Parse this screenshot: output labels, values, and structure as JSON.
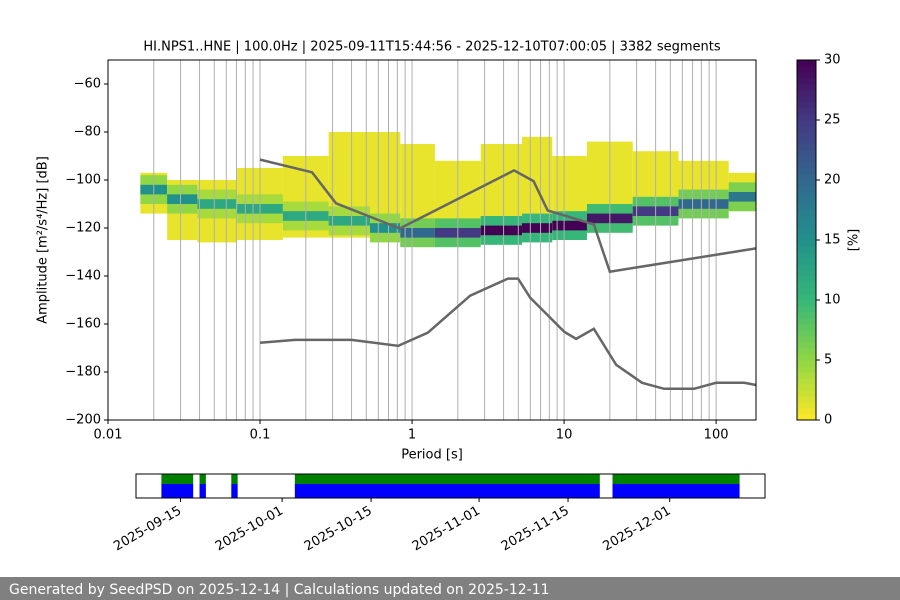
{
  "chart_data": [
    {
      "type": "heatmap",
      "title": "HI.NPS1..HNE | 100.0Hz | 2025-09-11T15:44:56 - 2025-12-10T07:00:05 | 3382 segments",
      "xlabel": "Period [s]",
      "ylabel": "Amplitude [m²/s⁴/Hz] [dB]",
      "xscale": "log",
      "xlim": [
        0.01,
        183
      ],
      "xticks": [
        0.01,
        0.1,
        1,
        10,
        100
      ],
      "xgrid_minor": true,
      "ylim": [
        -200,
        -50
      ],
      "yticks": [
        {
          "value": -60,
          "label": "−60"
        },
        {
          "value": -80,
          "label": "−80"
        },
        {
          "value": -100,
          "label": "−100"
        },
        {
          "value": -120,
          "label": "−120"
        },
        {
          "value": -140,
          "label": "−140"
        },
        {
          "value": -160,
          "label": "−160"
        },
        {
          "value": -180,
          "label": "−180"
        },
        {
          "value": -200,
          "label": "−200"
        }
      ],
      "heatmap": {
        "periods": [
          0.02,
          0.03,
          0.05,
          0.1,
          0.2,
          0.4,
          0.7,
          1,
          2,
          4,
          7,
          10,
          20,
          40,
          80,
          183
        ],
        "low": [
          -114,
          -125,
          -126,
          -125,
          -124,
          -124,
          -124,
          -124,
          -124,
          -124,
          -123,
          -122,
          -120,
          -117,
          -114,
          -113
        ],
        "high": [
          -97,
          -100,
          -100,
          -95,
          -90,
          -80,
          -80,
          -85,
          -92,
          -85,
          -82,
          -90,
          -84,
          -88,
          -92,
          -97
        ],
        "mode": [
          -104,
          -108,
          -110,
          -112,
          -115,
          -117,
          -120,
          -122,
          -122,
          -121,
          -120,
          -119,
          -116,
          -113,
          -110,
          -107
        ],
        "peak_percent": [
          15,
          15,
          12,
          12,
          12,
          12,
          15,
          20,
          25,
          30,
          30,
          30,
          28,
          25,
          20,
          18
        ]
      },
      "series": [
        {
          "color": "#666666",
          "x": [
            0.1,
            0.22,
            0.316,
            0.83,
            4.69,
            6.3,
            7.8,
            15.7,
            20,
            183
          ],
          "values": [
            -91.5,
            -96.8,
            -109.7,
            -120.2,
            -96,
            -100.5,
            -112.7,
            -118.5,
            -138.2,
            -128.5
          ]
        },
        {
          "color": "#666666",
          "x": [
            0.1,
            0.17,
            0.4,
            0.81,
            1.27,
            2.41,
            4.27,
            4.98,
            5.98,
            10,
            12,
            15.7,
            22,
            32.6,
            45.5,
            71.6,
            100,
            153,
            183
          ],
          "values": [
            -167.8,
            -166.6,
            -166.6,
            -169.1,
            -163.6,
            -148.2,
            -141.1,
            -141.1,
            -149,
            -163.2,
            -166.2,
            -162,
            -177,
            -184.5,
            -187,
            -187,
            -184.5,
            -184.5,
            -185.4
          ]
        }
      ],
      "colorbar": {
        "label": "[%]",
        "lim": [
          0,
          30
        ],
        "ticks": [
          0,
          5,
          10,
          15,
          20,
          25,
          30
        ],
        "colors": [
          "#fde725",
          "#90d743",
          "#35b779",
          "#21918c",
          "#31688e",
          "#443983",
          "#440154"
        ]
      }
    },
    {
      "type": "timeline",
      "xlim": [
        "2025-09-08",
        "2025-12-16"
      ],
      "xticks": [
        "2025-09-15",
        "2025-10-01",
        "2025-10-15",
        "2025-11-01",
        "2025-11-15",
        "2025-12-01"
      ],
      "available": {
        "color": "#008000",
        "start": [
          "2025-09-12",
          "2025-09-18",
          "2025-09-23",
          "2025-10-03",
          "2025-11-22"
        ],
        "end": [
          "2025-09-17",
          "2025-09-19",
          "2025-09-24",
          "2025-11-20",
          "2025-12-12"
        ]
      },
      "used": {
        "color": "#0000ff",
        "start": [
          "2025-09-12",
          "2025-09-18",
          "2025-09-23",
          "2025-10-03",
          "2025-11-22"
        ],
        "end": [
          "2025-09-17",
          "2025-09-19",
          "2025-09-24",
          "2025-11-20",
          "2025-12-12"
        ]
      }
    }
  ],
  "footer": "Generated by SeedPSD on 2025-12-14 | Calculations updated on 2025-12-11"
}
